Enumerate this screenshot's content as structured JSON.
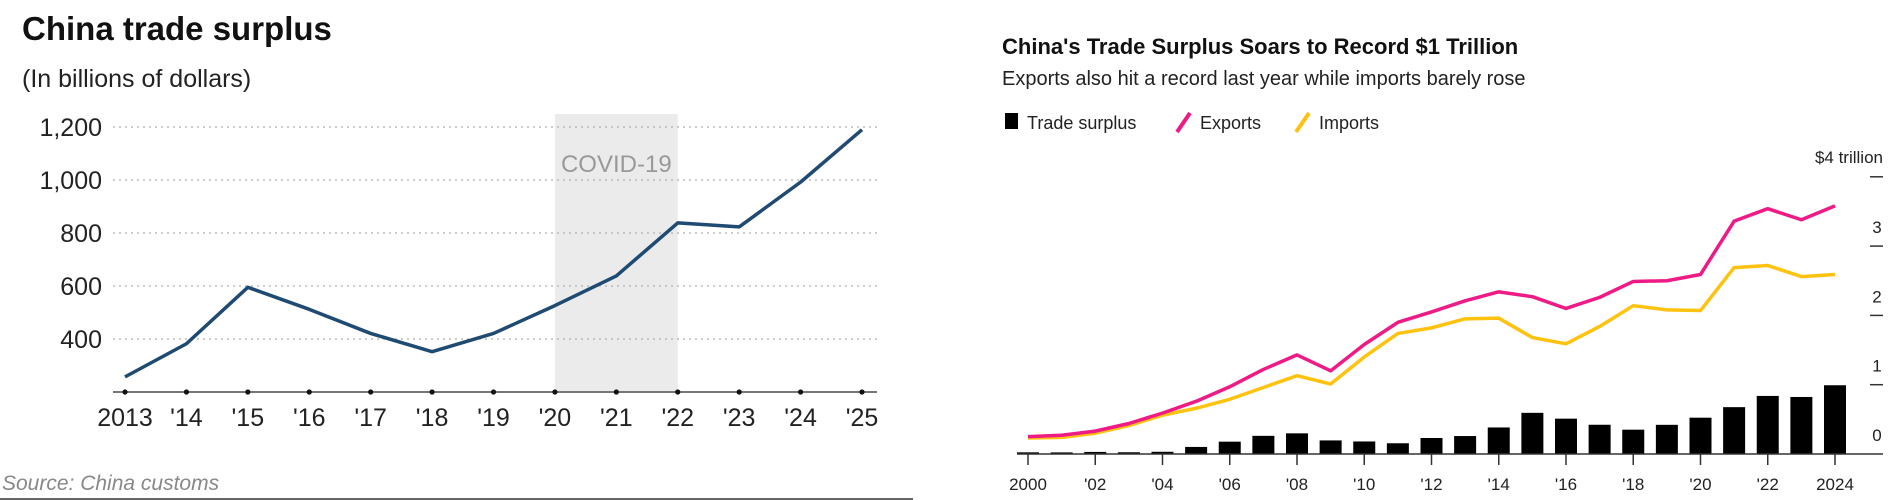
{
  "chart_data": [
    {
      "type": "line",
      "title": "China trade surplus",
      "subtitle": "(In billions of dollars)",
      "source": "Source: China customs",
      "annotation": "COVID-19",
      "shaded_range": [
        "'20",
        "'22"
      ],
      "categories": [
        "2013",
        "'14",
        "'15",
        "'16",
        "'17",
        "'18",
        "'19",
        "'20",
        "'21",
        "'22",
        "'23",
        "'24",
        "'25"
      ],
      "values": [
        257,
        382,
        595,
        512,
        421,
        352,
        421,
        526,
        638,
        838,
        823,
        992,
        1190
      ],
      "yticks": [
        400,
        600,
        800,
        1000,
        1200
      ],
      "ytick_labels": [
        "400",
        "600",
        "800",
        "1,000",
        "1,200"
      ],
      "ylim": [
        200,
        1200
      ],
      "grid": true,
      "line_color": "#1f4a72"
    },
    {
      "type": "bar+line",
      "title": "China's Trade Surplus Soars to Record $1 Trillion",
      "subtitle": "Exports also hit a record last year while imports barely rose",
      "x": [
        2000,
        2001,
        2002,
        2003,
        2004,
        2005,
        2006,
        2007,
        2008,
        2009,
        2010,
        2011,
        2012,
        2013,
        2014,
        2015,
        2016,
        2017,
        2018,
        2019,
        2020,
        2021,
        2022,
        2023,
        2024
      ],
      "xtick_labels": [
        "2000",
        "'02",
        "'04",
        "'06",
        "'08",
        "'10",
        "'12",
        "'14",
        "'16",
        "'18",
        "'20",
        "'22",
        "2024"
      ],
      "series": [
        {
          "name": "Trade surplus",
          "type": "bar",
          "color": "#000000",
          "values": [
            0.024,
            0.023,
            0.03,
            0.025,
            0.032,
            0.102,
            0.178,
            0.262,
            0.298,
            0.196,
            0.181,
            0.155,
            0.231,
            0.259,
            0.383,
            0.594,
            0.51,
            0.422,
            0.351,
            0.421,
            0.524,
            0.676,
            0.838,
            0.823,
            0.992
          ]
        },
        {
          "name": "Exports",
          "type": "line",
          "color": "#ee1a85",
          "values": [
            0.25,
            0.27,
            0.33,
            0.44,
            0.59,
            0.76,
            0.97,
            1.22,
            1.43,
            1.2,
            1.58,
            1.9,
            2.05,
            2.21,
            2.34,
            2.27,
            2.1,
            2.26,
            2.49,
            2.5,
            2.59,
            3.36,
            3.54,
            3.38,
            3.58
          ]
        },
        {
          "name": "Imports",
          "type": "line",
          "color": "#ffc20e",
          "values": [
            0.23,
            0.24,
            0.3,
            0.41,
            0.56,
            0.66,
            0.79,
            0.96,
            1.13,
            1.01,
            1.4,
            1.74,
            1.82,
            1.95,
            1.96,
            1.68,
            1.59,
            1.84,
            2.14,
            2.08,
            2.07,
            2.69,
            2.72,
            2.56,
            2.59
          ]
        }
      ],
      "ytick_labels": [
        "0",
        "1",
        "2",
        "3",
        "$4 trillion"
      ],
      "yticks": [
        0,
        1,
        2,
        3,
        4
      ],
      "ylim": [
        0,
        4
      ],
      "yaxis_side": "right",
      "legend_placement": "top-left",
      "grid": false
    }
  ]
}
